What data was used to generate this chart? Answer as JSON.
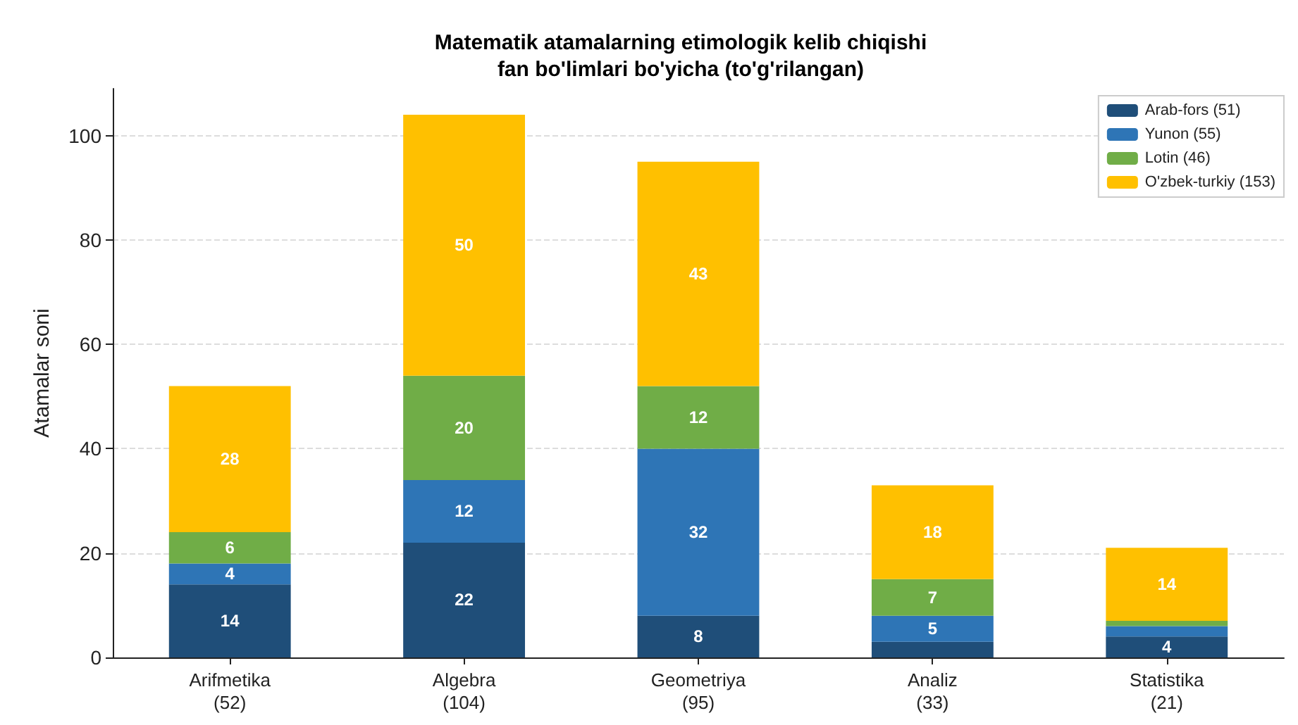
{
  "chart_data": {
    "type": "bar",
    "title": "Matematik atamalarning etimologik kelib chiqishi\nfan bo'limlari bo'yicha (to'g'rilangan)",
    "ylabel": "Atamalar soni",
    "categories": [
      "Arifmetika\n(52)",
      "Algebra\n(104)",
      "Geometriya\n(95)",
      "Analiz\n(33)",
      "Statistika\n(21)"
    ],
    "stacked": true,
    "series": [
      {
        "name": "Arab-fors (51)",
        "color": "#1f4e79",
        "values": [
          14,
          22,
          8,
          3,
          4
        ],
        "value_labels": [
          "14",
          "22",
          "8",
          null,
          "4"
        ]
      },
      {
        "name": "Yunon (55)",
        "color": "#2e75b6",
        "values": [
          4,
          12,
          32,
          5,
          2
        ],
        "value_labels": [
          "4",
          "12",
          "32",
          "5",
          null
        ]
      },
      {
        "name": "Lotin (46)",
        "color": "#70ad47",
        "values": [
          6,
          20,
          12,
          7,
          1
        ],
        "value_labels": [
          "6",
          "20",
          "12",
          "7",
          null
        ]
      },
      {
        "name": "O'zbek-turkiy (153)",
        "color": "#ffc000",
        "values": [
          28,
          50,
          43,
          18,
          14
        ],
        "value_labels": [
          "28",
          "50",
          "43",
          "18",
          "14"
        ]
      }
    ],
    "ylim": [
      0,
      109
    ],
    "yticks": [
      0,
      20,
      40,
      60,
      80,
      100
    ],
    "grid": "y",
    "legend": "top right"
  }
}
